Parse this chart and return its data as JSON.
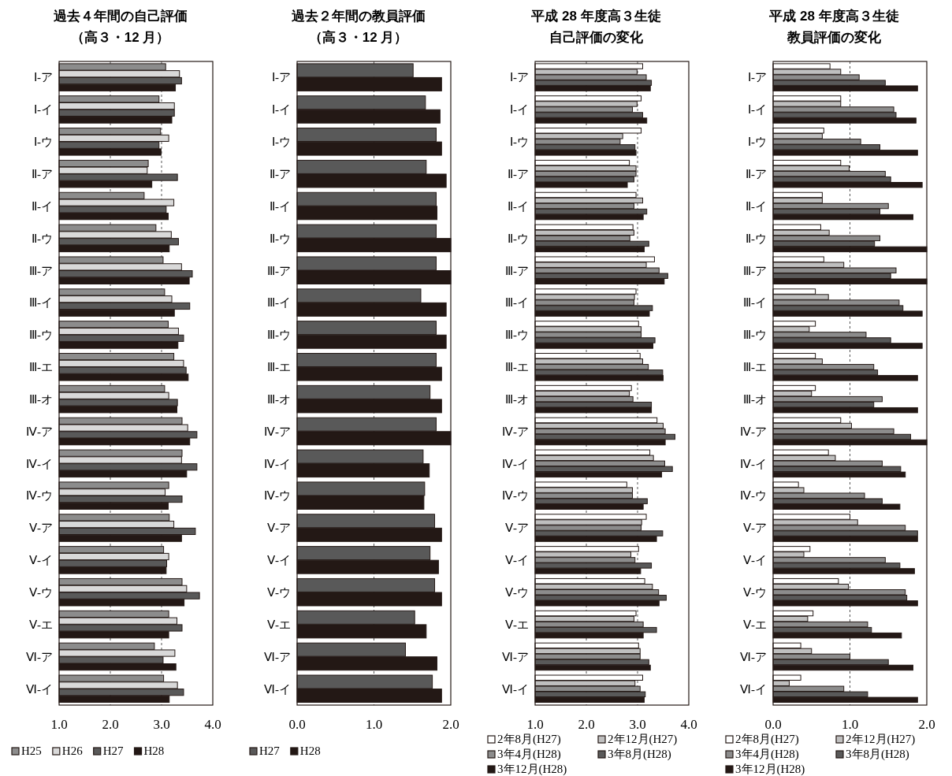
{
  "chart_data": [
    {
      "type": "bar",
      "orientation": "horizontal",
      "title": "過去４年間の自己評価",
      "subtitle": "（高３・12 月）",
      "categories": [
        "Ⅰ-ア",
        "Ⅰ-イ",
        "Ⅰ-ウ",
        "Ⅱ-ア",
        "Ⅱ-イ",
        "Ⅱ-ウ",
        "Ⅲ-ア",
        "Ⅲ-イ",
        "Ⅲ-ウ",
        "Ⅲ-エ",
        "Ⅲ-オ",
        "Ⅳ-ア",
        "Ⅳ-イ",
        "Ⅳ-ウ",
        "Ⅴ-ア",
        "Ⅴ-イ",
        "Ⅴ-ウ",
        "Ⅴ-エ",
        "Ⅵ-ア",
        "Ⅵ-イ"
      ],
      "xlim": [
        1,
        4
      ],
      "xticks": [
        {
          "value": 1,
          "label": "1.0"
        },
        {
          "value": 2,
          "label": "2.0"
        },
        {
          "value": 3,
          "label": "3.0"
        },
        {
          "value": 4,
          "label": "4.0"
        }
      ],
      "grid": "x",
      "legend": "bottom",
      "series": [
        {
          "name": "H25",
          "color": "#8c8c8c",
          "values": [
            3.08,
            2.95,
            2.98,
            2.74,
            2.66,
            2.89,
            3.03,
            3.06,
            3.13,
            3.24,
            3.06,
            3.4,
            3.4,
            3.14,
            3.15,
            3.04,
            3.4,
            3.14,
            2.86,
            3.04
          ]
        },
        {
          "name": "H26",
          "color": "#d9d9d9",
          "values": [
            3.35,
            3.25,
            3.14,
            2.72,
            3.24,
            3.19,
            3.39,
            3.2,
            3.33,
            3.43,
            3.14,
            3.51,
            3.39,
            3.07,
            3.24,
            3.14,
            3.49,
            3.3,
            3.26,
            3.31
          ]
        },
        {
          "name": "H27",
          "color": "#595959",
          "values": [
            3.39,
            3.25,
            2.95,
            3.31,
            3.09,
            3.33,
            3.6,
            3.55,
            3.43,
            3.48,
            3.31,
            3.69,
            3.69,
            3.4,
            3.66,
            3.1,
            3.74,
            3.4,
            3.03,
            3.43
          ]
        },
        {
          "name": "H28",
          "color": "#231815",
          "values": [
            3.27,
            3.2,
            2.99,
            2.81,
            3.13,
            3.15,
            3.54,
            3.25,
            3.32,
            3.52,
            3.3,
            3.55,
            3.49,
            3.13,
            3.39,
            3.09,
            3.44,
            3.14,
            3.28,
            3.15
          ]
        }
      ]
    },
    {
      "type": "bar",
      "orientation": "horizontal",
      "title": "過去２年間の教員評価",
      "subtitle": "（高３・12 月）",
      "categories": [
        "Ⅰ-ア",
        "Ⅰ-イ",
        "Ⅰ-ウ",
        "Ⅱ-ア",
        "Ⅱ-イ",
        "Ⅱ-ウ",
        "Ⅲ-ア",
        "Ⅲ-イ",
        "Ⅲ-ウ",
        "Ⅲ-エ",
        "Ⅲ-オ",
        "Ⅳ-ア",
        "Ⅳ-イ",
        "Ⅳ-ウ",
        "Ⅴ-ア",
        "Ⅴ-イ",
        "Ⅴ-ウ",
        "Ⅴ-エ",
        "Ⅵ-ア",
        "Ⅵ-イ"
      ],
      "xlim": [
        0,
        2
      ],
      "xticks": [
        {
          "value": 0,
          "label": "0.0"
        },
        {
          "value": 1,
          "label": "1.0"
        },
        {
          "value": 2,
          "label": "2.0"
        }
      ],
      "grid": "x",
      "legend": "bottom",
      "series": [
        {
          "name": "H27",
          "color": "#595959",
          "values": [
            1.51,
            1.67,
            1.81,
            1.68,
            1.81,
            1.81,
            1.81,
            1.61,
            1.81,
            1.81,
            1.73,
            1.81,
            1.64,
            1.66,
            1.79,
            1.73,
            1.79,
            1.53,
            1.41,
            1.76
          ]
        },
        {
          "name": "H28",
          "color": "#231815",
          "values": [
            1.88,
            1.86,
            1.88,
            1.94,
            1.82,
            2.0,
            2.0,
            1.94,
            1.94,
            1.88,
            1.88,
            2.0,
            1.72,
            1.65,
            1.88,
            1.84,
            1.88,
            1.68,
            1.82,
            1.88
          ]
        }
      ]
    },
    {
      "type": "bar",
      "orientation": "horizontal",
      "title": "平成 28 年度高３生徒",
      "subtitle": "自己評価の変化",
      "categories": [
        "Ⅰ-ア",
        "Ⅰ-イ",
        "Ⅰ-ウ",
        "Ⅱ-ア",
        "Ⅱ-イ",
        "Ⅱ-ウ",
        "Ⅲ-ア",
        "Ⅲ-イ",
        "Ⅲ-ウ",
        "Ⅲ-エ",
        "Ⅲ-オ",
        "Ⅳ-ア",
        "Ⅳ-イ",
        "Ⅳ-ウ",
        "Ⅴ-ア",
        "Ⅴ-イ",
        "Ⅴ-ウ",
        "Ⅴ-エ",
        "Ⅵ-ア",
        "Ⅵ-イ"
      ],
      "xlim": [
        1,
        4
      ],
      "xticks": [
        {
          "value": 1,
          "label": "1.0"
        },
        {
          "value": 2,
          "label": "2.0"
        },
        {
          "value": 3,
          "label": "3.0"
        },
        {
          "value": 4,
          "label": "4.0"
        }
      ],
      "grid": "x",
      "legend": "bottom",
      "series": [
        {
          "name": "2年8月(H27)",
          "color": "#ffffff",
          "values": [
            3.1,
            3.07,
            3.07,
            2.84,
            2.97,
            2.91,
            3.33,
            2.97,
            3.02,
            3.05,
            2.88,
            3.38,
            3.24,
            2.79,
            3.17,
            3.02,
            3.14,
            2.97,
            3.02,
            3.1
          ]
        },
        {
          "name": "2年12月(H27)",
          "color": "#bfbfbf",
          "values": [
            2.99,
            2.99,
            2.71,
            2.97,
            3.1,
            2.93,
            3.17,
            2.94,
            3.07,
            3.1,
            2.84,
            3.5,
            3.31,
            2.9,
            3.08,
            2.87,
            3.29,
            2.93,
            3.05,
            2.95
          ]
        },
        {
          "name": "3年4月(H28)",
          "color": "#8c8c8c",
          "values": [
            3.17,
            2.9,
            2.66,
            2.97,
            2.93,
            2.85,
            3.42,
            2.93,
            3.07,
            3.21,
            2.91,
            3.54,
            3.53,
            2.9,
            3.07,
            2.95,
            3.41,
            3.11,
            3.05,
            3.05
          ]
        },
        {
          "name": "3年8月(H28)",
          "color": "#595959",
          "values": [
            3.27,
            3.1,
            2.95,
            2.93,
            3.18,
            3.22,
            3.59,
            3.29,
            3.34,
            3.49,
            3.27,
            3.73,
            3.68,
            3.19,
            3.49,
            3.27,
            3.56,
            3.37,
            3.22,
            3.15
          ]
        },
        {
          "name": "3年12月(H28)",
          "color": "#231815",
          "values": [
            3.25,
            3.18,
            2.97,
            2.8,
            3.11,
            3.13,
            3.52,
            3.23,
            3.3,
            3.5,
            3.27,
            3.54,
            3.47,
            3.11,
            3.37,
            3.06,
            3.42,
            3.11,
            3.25,
            3.13
          ]
        }
      ]
    },
    {
      "type": "bar",
      "orientation": "horizontal",
      "title": "平成 28 年度高３生徒",
      "subtitle": "教員評価の変化",
      "categories": [
        "Ⅰ-ア",
        "Ⅰ-イ",
        "Ⅰ-ウ",
        "Ⅱ-ア",
        "Ⅱ-イ",
        "Ⅱ-ウ",
        "Ⅲ-ア",
        "Ⅲ-イ",
        "Ⅲ-ウ",
        "Ⅲ-エ",
        "Ⅲ-オ",
        "Ⅳ-ア",
        "Ⅳ-イ",
        "Ⅳ-ウ",
        "Ⅴ-ア",
        "Ⅴ-イ",
        "Ⅴ-ウ",
        "Ⅴ-エ",
        "Ⅵ-ア",
        "Ⅵ-イ"
      ],
      "xlim": [
        0,
        2
      ],
      "xticks": [
        {
          "value": 0,
          "label": "0.0"
        },
        {
          "value": 1,
          "label": "1.0"
        },
        {
          "value": 2,
          "label": "2.0"
        }
      ],
      "grid": "x",
      "legend": "bottom",
      "series": [
        {
          "name": "2年8月(H27)",
          "color": "#ffffff",
          "values": [
            0.74,
            0.88,
            0.66,
            0.88,
            0.64,
            0.62,
            0.66,
            0.55,
            0.55,
            0.55,
            0.55,
            0.88,
            0.72,
            0.33,
            1.0,
            0.48,
            0.85,
            0.52,
            0.36,
            0.36
          ]
        },
        {
          "name": "2年12月(H27)",
          "color": "#bfbfbf",
          "values": [
            0.88,
            0.88,
            0.64,
            0.99,
            0.64,
            0.73,
            0.92,
            0.72,
            0.47,
            0.64,
            0.5,
            1.02,
            0.81,
            0.4,
            1.1,
            0.4,
            0.98,
            0.45,
            0.5,
            0.21
          ]
        },
        {
          "name": "3年4月(H28)",
          "color": "#8c8c8c",
          "values": [
            1.12,
            1.57,
            1.14,
            1.46,
            1.5,
            1.39,
            1.6,
            1.64,
            1.21,
            1.31,
            1.42,
            1.57,
            1.42,
            1.19,
            1.72,
            1.46,
            1.72,
            1.23,
            1.0,
            0.92
          ]
        },
        {
          "name": "3年8月(H28)",
          "color": "#595959",
          "values": [
            1.46,
            1.6,
            1.39,
            1.53,
            1.39,
            1.32,
            1.53,
            1.69,
            1.53,
            1.36,
            1.31,
            1.79,
            1.66,
            1.42,
            1.88,
            1.65,
            1.74,
            1.28,
            1.5,
            1.23
          ]
        },
        {
          "name": "3年12月(H28)",
          "color": "#231815",
          "values": [
            1.88,
            1.86,
            1.88,
            1.94,
            1.82,
            2.0,
            2.0,
            1.94,
            1.94,
            1.88,
            1.88,
            2.0,
            1.72,
            1.65,
            1.88,
            1.84,
            1.88,
            1.67,
            1.82,
            1.88
          ]
        }
      ]
    }
  ]
}
